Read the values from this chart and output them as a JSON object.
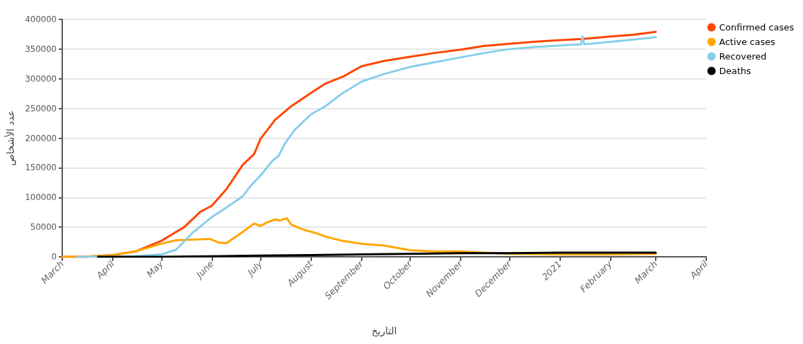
{
  "chart_data": {
    "type": "line",
    "xlabel": "التاريخ",
    "ylabel": "عدد الأشخاص",
    "xlim": [
      "2020-03-01",
      "2021-04-01"
    ],
    "xticks": [
      {
        "value": "2020-03-01",
        "label": "March"
      },
      {
        "value": "2020-04-01",
        "label": "April"
      },
      {
        "value": "2020-05-01",
        "label": "May"
      },
      {
        "value": "2020-06-01",
        "label": "June"
      },
      {
        "value": "2020-07-01",
        "label": "July"
      },
      {
        "value": "2020-08-01",
        "label": "August"
      },
      {
        "value": "2020-09-01",
        "label": "September"
      },
      {
        "value": "2020-10-01",
        "label": "October"
      },
      {
        "value": "2020-11-01",
        "label": "November"
      },
      {
        "value": "2020-12-01",
        "label": "December"
      },
      {
        "value": "2021-01-01",
        "label": "2021"
      },
      {
        "value": "2021-02-01",
        "label": "February"
      },
      {
        "value": "2021-03-01",
        "label": "March"
      },
      {
        "value": "2021-04-01",
        "label": "April"
      }
    ],
    "ylim": [
      0,
      400000
    ],
    "yticks": [
      0,
      50000,
      100000,
      150000,
      200000,
      250000,
      300000,
      350000,
      400000
    ],
    "grid": "y",
    "legend": "top right",
    "marker": "none",
    "line_style": "solid",
    "series": [
      {
        "name": "Confirmed cases",
        "color": "#ff4500",
        "x": [
          "2020-03-01",
          "2020-03-15",
          "2020-04-01",
          "2020-04-15",
          "2020-05-01",
          "2020-05-15",
          "2020-05-25",
          "2020-06-01",
          "2020-06-10",
          "2020-06-20",
          "2020-06-27",
          "2020-07-01",
          "2020-07-10",
          "2020-07-20",
          "2020-08-01",
          "2020-08-10",
          "2020-08-21",
          "2020-09-01",
          "2020-09-15",
          "2020-10-01",
          "2020-10-15",
          "2020-11-01",
          "2020-11-15",
          "2020-12-01",
          "2020-12-15",
          "2021-01-01",
          "2021-01-15",
          "2021-02-01",
          "2021-02-15",
          "2021-03-01"
        ],
        "values": [
          0,
          0,
          3000,
          9000,
          27000,
          50000,
          76000,
          86000,
          114000,
          155000,
          173000,
          199000,
          231000,
          254000,
          276000,
          292000,
          304000,
          321000,
          330000,
          337000,
          343000,
          349000,
          355000,
          359000,
          362000,
          365000,
          367000,
          371000,
          374000,
          379000
        ]
      },
      {
        "name": "Active cases",
        "color": "#ffa500",
        "x": [
          "2020-03-01",
          "2020-03-15",
          "2020-04-01",
          "2020-04-15",
          "2020-05-01",
          "2020-05-10",
          "2020-05-20",
          "2020-05-31",
          "2020-06-05",
          "2020-06-10",
          "2020-06-20",
          "2020-06-27",
          "2020-07-01",
          "2020-07-05",
          "2020-07-10",
          "2020-07-13",
          "2020-07-17",
          "2020-07-20",
          "2020-07-27",
          "2020-08-05",
          "2020-08-10",
          "2020-08-20",
          "2020-09-01",
          "2020-09-15",
          "2020-09-25",
          "2020-10-01",
          "2020-10-15",
          "2020-11-01",
          "2020-11-15",
          "2020-12-01",
          "2021-01-01",
          "2021-02-01",
          "2021-03-01"
        ],
        "values": [
          0,
          0,
          3000,
          9000,
          22000,
          28000,
          29000,
          30000,
          24000,
          23000,
          42000,
          56000,
          52000,
          58000,
          63000,
          61000,
          65000,
          54000,
          46000,
          39000,
          34000,
          27000,
          22000,
          19000,
          14000,
          11000,
          9000,
          9000,
          7000,
          5000,
          4000,
          4000,
          5000
        ]
      },
      {
        "name": "Recovered",
        "color": "#87ceeb",
        "x": [
          "2020-03-10",
          "2020-04-01",
          "2020-04-15",
          "2020-05-01",
          "2020-05-10",
          "2020-05-20",
          "2020-06-01",
          "2020-06-10",
          "2020-06-20",
          "2020-06-25",
          "2020-07-01",
          "2020-07-08",
          "2020-07-12",
          "2020-07-16",
          "2020-07-22",
          "2020-08-01",
          "2020-08-10",
          "2020-08-20",
          "2020-09-01",
          "2020-09-15",
          "2020-10-01",
          "2020-10-15",
          "2020-11-01",
          "2020-11-15",
          "2020-12-01",
          "2020-12-15",
          "2021-01-01",
          "2021-01-14",
          "2021-01-15",
          "2021-01-16",
          "2021-02-01",
          "2021-02-15",
          "2021-03-01"
        ],
        "values": [
          0,
          0,
          1000,
          4000,
          12000,
          40000,
          67000,
          83000,
          102000,
          120000,
          137000,
          161000,
          170000,
          191000,
          214000,
          240000,
          254000,
          275000,
          295000,
          308000,
          320000,
          327000,
          336000,
          343000,
          350000,
          353000,
          356000,
          358000,
          371000,
          358000,
          362000,
          366000,
          370000
        ]
      },
      {
        "name": "Deaths",
        "color": "#000000",
        "x": [
          "2020-03-23",
          "2020-05-01",
          "2020-06-01",
          "2020-07-01",
          "2020-08-01",
          "2020-09-01",
          "2020-10-01",
          "2020-11-01",
          "2020-12-01",
          "2021-01-01",
          "2021-02-01",
          "2021-03-01"
        ],
        "values": [
          0,
          0,
          1000,
          2000,
          3000,
          4000,
          5000,
          6000,
          6000,
          7000,
          7000,
          7000
        ]
      }
    ]
  }
}
